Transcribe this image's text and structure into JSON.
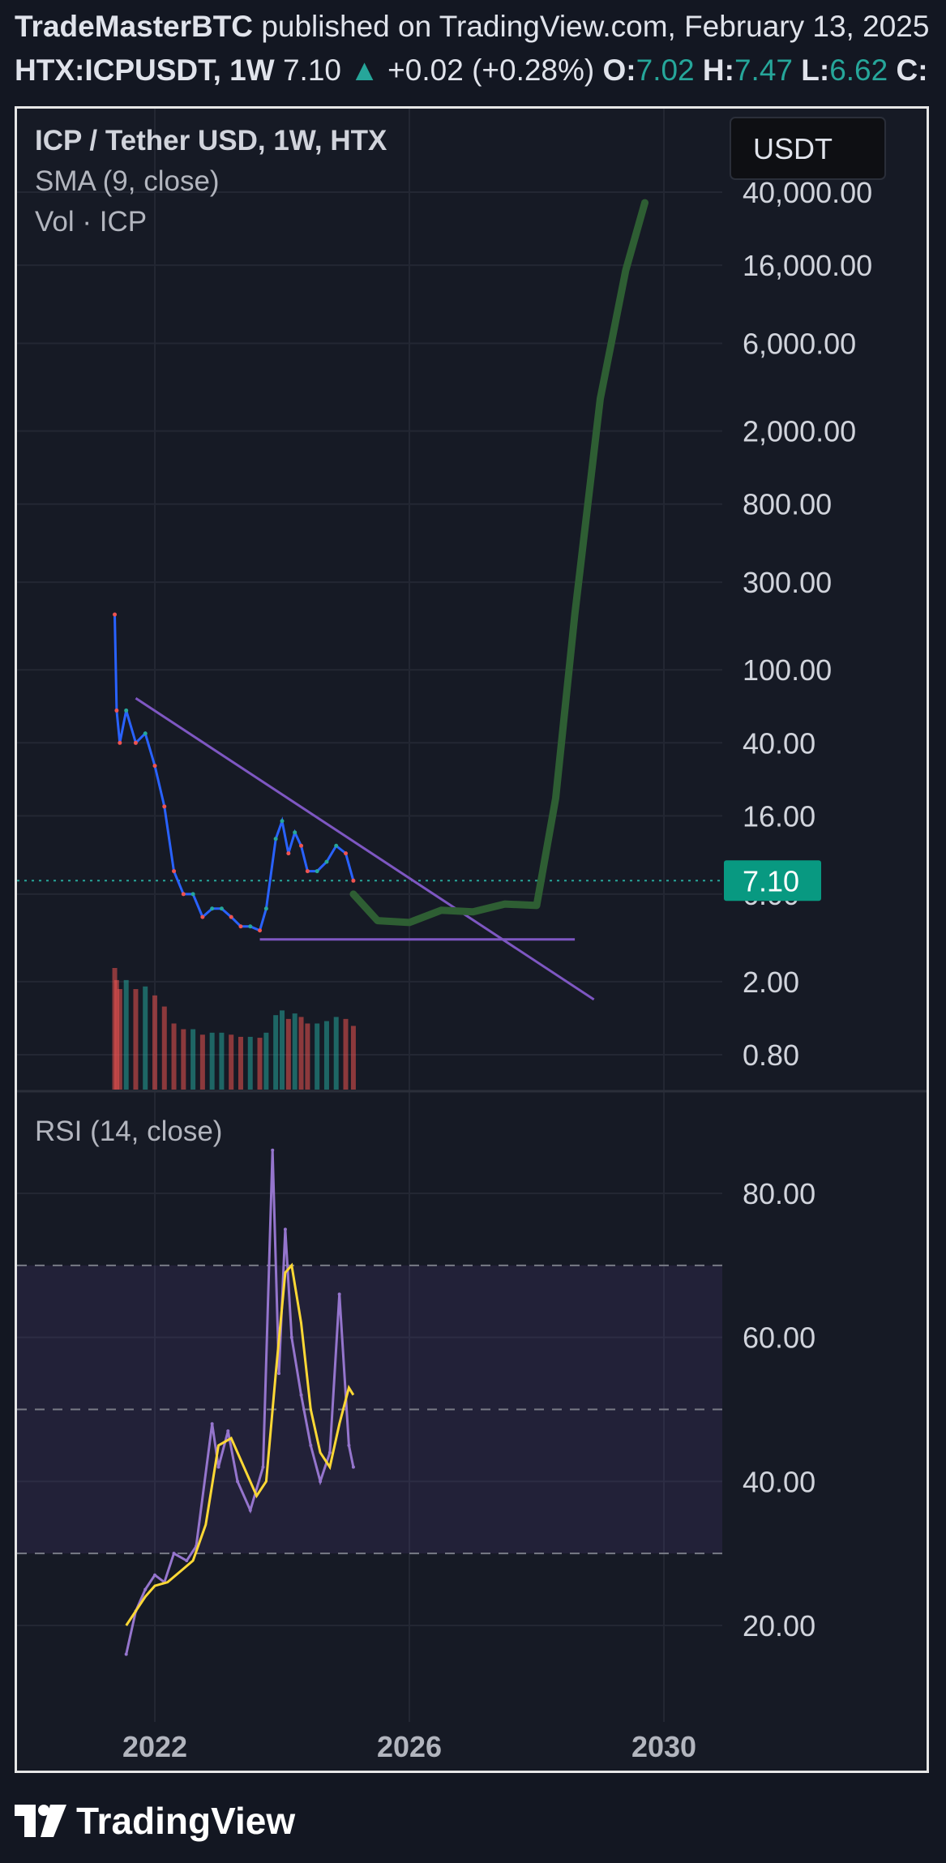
{
  "header": {
    "publisher": "TradeMasterBTC",
    "published_text": "published on TradingView.com, February 13, 2025",
    "symbol": "HTX:ICPUSDT, 1W",
    "price": "7.10",
    "change": "+0.02 (+0.28%)",
    "o_label": "O:",
    "o_val": "7.02",
    "h_label": "H:",
    "h_val": "7.47",
    "l_label": "L:",
    "l_val": "6.62",
    "c_label": "C:"
  },
  "legend": {
    "title": "ICP / Tether USD, 1W, HTX",
    "sma": "SMA (9, close)",
    "vol": "Vol · ICP",
    "rsi": "RSI (14, close)"
  },
  "currency_button": "USDT",
  "last_price_badge": "7.10",
  "brand": "TradingView",
  "colors": {
    "background": "#161a25",
    "up": "#26a69a",
    "down": "#ef5350",
    "sma": "#2962ff",
    "trendline": "#7e57c2",
    "projection": "#2e5e33",
    "rsi": "#9575cd",
    "rsi_ma": "#fdd835"
  },
  "chart_data": [
    {
      "type": "line",
      "title": "ICP / Tether USD, 1W, HTX",
      "yscale": "log",
      "y_ticks": [
        "40,000.00",
        "16,000.00",
        "6,000.00",
        "2,000.00",
        "800.00",
        "300.00",
        "100.00",
        "40.00",
        "16.00",
        "6.00",
        "2.00",
        "0.80"
      ],
      "x_ticks": [
        "2022",
        "2026",
        "2030"
      ],
      "ylim": [
        0.6,
        40000
      ],
      "last_price": 7.1,
      "series": [
        {
          "name": "ICP / Tether USD",
          "x": [
            2021.37,
            2021.4,
            2021.45,
            2021.55,
            2021.7,
            2021.85,
            2022.0,
            2022.15,
            2022.3,
            2022.45,
            2022.6,
            2022.75,
            2022.9,
            2023.05,
            2023.2,
            2023.35,
            2023.5,
            2023.65,
            2023.75,
            2023.9,
            2024.0,
            2024.1,
            2024.2,
            2024.3,
            2024.4,
            2024.55,
            2024.7,
            2024.85,
            2025.0,
            2025.12
          ],
          "values": [
            200,
            60,
            40,
            60,
            40,
            45,
            30,
            18,
            8,
            6,
            6,
            4.5,
            5,
            5,
            4.5,
            4,
            4,
            3.8,
            5,
            12,
            15,
            10,
            13,
            11,
            8,
            8,
            9,
            11,
            10,
            7.1
          ]
        },
        {
          "name": "projection",
          "x": [
            2025.12,
            2025.5,
            2026.0,
            2026.5,
            2027.0,
            2027.5,
            2028.0,
            2028.3,
            2028.6,
            2029.0,
            2029.4,
            2029.7
          ],
          "values": [
            6.0,
            4.3,
            4.2,
            4.9,
            4.8,
            5.3,
            5.2,
            20,
            200,
            3000,
            15000,
            35000
          ]
        }
      ],
      "lines": [
        {
          "name": "descending trendline",
          "x": [
            2021.7,
            2028.9
          ],
          "values": [
            70,
            1.6
          ]
        },
        {
          "name": "support",
          "x": [
            2023.65,
            2028.6
          ],
          "values": [
            3.4,
            3.4
          ]
        }
      ]
    },
    {
      "type": "line",
      "title": "RSI (14, close)",
      "y_ticks": [
        "80.00",
        "60.00",
        "40.00",
        "20.00"
      ],
      "ylim": [
        10,
        90
      ],
      "bands": [
        30,
        50,
        70
      ],
      "series": [
        {
          "name": "RSI",
          "x": [
            2021.55,
            2021.7,
            2021.85,
            2022.0,
            2022.15,
            2022.3,
            2022.5,
            2022.65,
            2022.9,
            2023.0,
            2023.15,
            2023.3,
            2023.5,
            2023.7,
            2023.85,
            2023.95,
            2024.05,
            2024.15,
            2024.3,
            2024.45,
            2024.6,
            2024.75,
            2024.9,
            2025.05,
            2025.12
          ],
          "values": [
            16,
            22,
            25,
            27,
            26,
            30,
            29,
            31,
            48,
            42,
            47,
            40,
            36,
            42,
            86,
            55,
            75,
            60,
            52,
            45,
            40,
            44,
            66,
            45,
            42
          ]
        },
        {
          "name": "RSI MA",
          "x": [
            2021.55,
            2021.7,
            2021.85,
            2022.0,
            2022.2,
            2022.4,
            2022.6,
            2022.8,
            2023.0,
            2023.2,
            2023.4,
            2023.6,
            2023.75,
            2023.9,
            2024.05,
            2024.15,
            2024.3,
            2024.45,
            2024.6,
            2024.75,
            2024.9,
            2025.05,
            2025.12
          ],
          "values": [
            20,
            22,
            24,
            25.5,
            26,
            27.5,
            29,
            34,
            45,
            46,
            42,
            38,
            40,
            55,
            69,
            70,
            62,
            50,
            44,
            42,
            48,
            53,
            52
          ]
        }
      ]
    }
  ]
}
